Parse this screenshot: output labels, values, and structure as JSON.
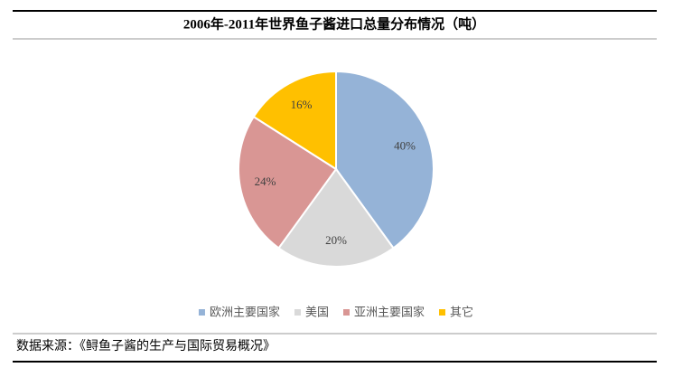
{
  "chart_data": {
    "type": "pie",
    "title": "2006年-2011年世界鱼子酱进口总量分布情况（吨）",
    "categories": [
      "欧洲主要国家",
      "美国",
      "亚洲主要国家",
      "其它"
    ],
    "values": [
      40,
      20,
      24,
      16
    ],
    "value_labels": [
      "40%",
      "20%",
      "24%",
      "16%"
    ],
    "colors": [
      "#95b3d7",
      "#d9d9d9",
      "#d99694",
      "#ffc000"
    ],
    "legend": "bottom"
  },
  "footer": {
    "source": "数据来源：《鲟鱼子酱的生产与国际贸易概况》"
  }
}
